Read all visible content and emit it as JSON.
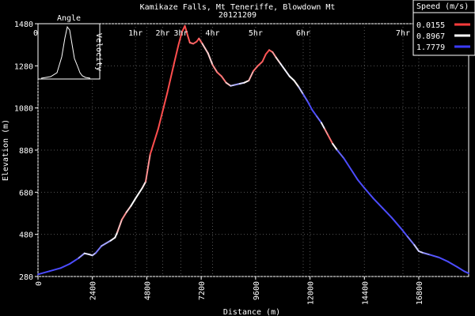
{
  "chart_data": {
    "type": "line",
    "title": "Kamikaze Falls, Mt Teneriffe, Blowdown Mt",
    "subtitle": "20121209",
    "xlabel": "Distance (m)",
    "ylabel": "Elevation (m)",
    "xlim": [
      0,
      19000
    ],
    "ylim": [
      280,
      1480
    ],
    "x_ticks": [
      0,
      2400,
      4800,
      7200,
      9600,
      12000,
      14400,
      16800
    ],
    "y_ticks": [
      280,
      480,
      680,
      880,
      1080,
      1280,
      1480
    ],
    "time_ticks": [
      {
        "label": "0h",
        "x": 0
      },
      {
        "label": "1hr",
        "x": 4300
      },
      {
        "label": "2hr",
        "x": 5500
      },
      {
        "label": "3hr",
        "x": 6300
      },
      {
        "label": "4hr",
        "x": 7700
      },
      {
        "label": "5hr",
        "x": 9600
      },
      {
        "label": "6hr",
        "x": 11700
      },
      {
        "label": "7hr",
        "x": 16100
      }
    ],
    "legend": {
      "title": "Speed (m/s)",
      "placement": "top-right",
      "entries": [
        {
          "label": "0.0155",
          "color": "#ff3b3b"
        },
        {
          "label": "0.8967",
          "color": "#ffffff"
        },
        {
          "label": "1.7779",
          "color": "#3b3bff"
        }
      ]
    },
    "inset": {
      "title": "Angle",
      "ylabel": "Velocity",
      "placement": "top-left"
    },
    "series": [
      {
        "values": [
          [
            0,
            290,
            1.7
          ],
          [
            500,
            305,
            1.7
          ],
          [
            1000,
            320,
            1.7
          ],
          [
            1400,
            340,
            1.7
          ],
          [
            1800,
            368,
            1.7
          ],
          [
            2050,
            390,
            1.0
          ],
          [
            2250,
            385,
            1.0
          ],
          [
            2400,
            380,
            1.0
          ],
          [
            2550,
            392,
            1.4
          ],
          [
            2800,
            425,
            1.6
          ],
          [
            3200,
            450,
            1.0
          ],
          [
            3400,
            465,
            0.9
          ],
          [
            3500,
            490,
            0.9
          ],
          [
            3700,
            550,
            0.3
          ],
          [
            3900,
            585,
            0.5
          ],
          [
            4100,
            615,
            0.9
          ],
          [
            4300,
            650,
            0.9
          ],
          [
            4600,
            700,
            0.9
          ],
          [
            4750,
            730,
            0.7
          ],
          [
            4950,
            860,
            0.1
          ],
          [
            5300,
            980,
            0.1
          ],
          [
            5700,
            1150,
            0.1
          ],
          [
            6000,
            1290,
            0.1
          ],
          [
            6200,
            1380,
            0.1
          ],
          [
            6350,
            1440,
            0.1
          ],
          [
            6480,
            1470,
            0.1
          ],
          [
            6600,
            1425,
            0.1
          ],
          [
            6700,
            1390,
            0.2
          ],
          [
            6850,
            1385,
            0.3
          ],
          [
            7000,
            1395,
            0.1
          ],
          [
            7100,
            1410,
            0.1
          ],
          [
            7250,
            1385,
            0.4
          ],
          [
            7500,
            1340,
            0.9
          ],
          [
            7700,
            1285,
            0.5
          ],
          [
            7900,
            1250,
            0.3
          ],
          [
            8100,
            1230,
            0.2
          ],
          [
            8300,
            1200,
            0.4
          ],
          [
            8500,
            1185,
            0.9
          ],
          [
            8700,
            1190,
            1.4
          ],
          [
            8900,
            1195,
            1.2
          ],
          [
            9100,
            1200,
            0.9
          ],
          [
            9300,
            1210,
            0.8
          ],
          [
            9500,
            1255,
            0.3
          ],
          [
            9700,
            1280,
            0.2
          ],
          [
            9900,
            1300,
            0.2
          ],
          [
            10050,
            1335,
            0.1
          ],
          [
            10200,
            1355,
            0.1
          ],
          [
            10350,
            1345,
            0.3
          ],
          [
            10500,
            1320,
            0.6
          ],
          [
            10700,
            1290,
            0.9
          ],
          [
            10900,
            1260,
            1.0
          ],
          [
            11100,
            1230,
            0.9
          ],
          [
            11300,
            1210,
            0.9
          ],
          [
            11500,
            1180,
            0.8
          ],
          [
            11700,
            1145,
            1.5
          ],
          [
            11900,
            1110,
            1.7
          ],
          [
            12100,
            1070,
            1.7
          ],
          [
            12300,
            1040,
            1.7
          ],
          [
            12500,
            1010,
            1.4
          ],
          [
            12650,
            980,
            0.5
          ],
          [
            12800,
            950,
            0.3
          ],
          [
            13000,
            910,
            0.2
          ],
          [
            13200,
            880,
            1.5
          ],
          [
            13500,
            840,
            1.7
          ],
          [
            13800,
            790,
            1.7
          ],
          [
            14100,
            740,
            1.7
          ],
          [
            14400,
            700,
            1.7
          ],
          [
            14800,
            650,
            1.7
          ],
          [
            15200,
            605,
            1.7
          ],
          [
            15600,
            560,
            1.7
          ],
          [
            16000,
            510,
            1.7
          ],
          [
            16300,
            470,
            1.7
          ],
          [
            16600,
            430,
            1.3
          ],
          [
            16800,
            400,
            1.0
          ],
          [
            17000,
            392,
            1.2
          ],
          [
            17300,
            383,
            1.6
          ],
          [
            17700,
            370,
            1.7
          ],
          [
            18100,
            350,
            1.7
          ],
          [
            18500,
            325,
            1.7
          ],
          [
            18800,
            305,
            1.7
          ],
          [
            19000,
            295,
            1.7
          ]
        ]
      }
    ]
  }
}
